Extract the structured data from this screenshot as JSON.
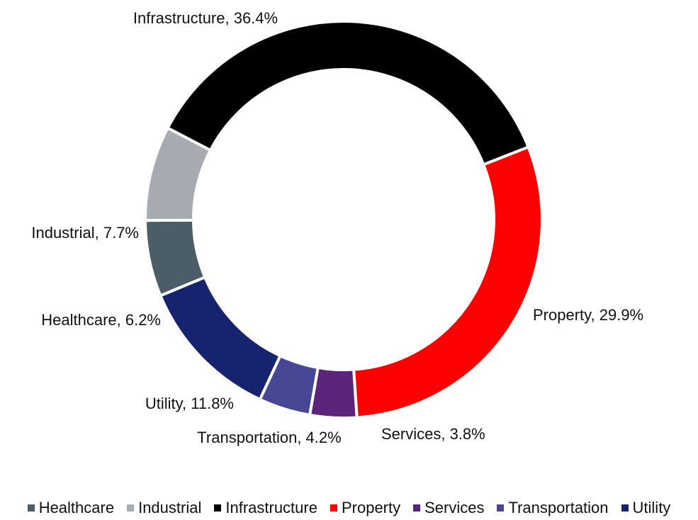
{
  "chart_data": {
    "type": "pie",
    "variant": "donut",
    "title": "",
    "slices": [
      {
        "name": "Infrastructure",
        "value": 36.4,
        "label": "Infrastructure, 36.4%",
        "color": "#000000"
      },
      {
        "name": "Property",
        "value": 29.9,
        "label": "Property, 29.9%",
        "color": "#ff0000"
      },
      {
        "name": "Services",
        "value": 3.8,
        "label": "Services, 3.8%",
        "color": "#5b247a"
      },
      {
        "name": "Transportation",
        "value": 4.2,
        "label": "Transportation, 4.2%",
        "color": "#464896"
      },
      {
        "name": "Utility",
        "value": 11.8,
        "label": "Utility, 11.8%",
        "color": "#162470"
      },
      {
        "name": "Healthcare",
        "value": 6.2,
        "label": "Healthcare, 6.2%",
        "color": "#4b5e68"
      },
      {
        "name": "Industrial",
        "value": 7.7,
        "label": "Industrial, 7.7%",
        "color": "#a5abb0"
      }
    ],
    "legend": {
      "position": "bottom",
      "items": [
        {
          "label": "Healthcare",
          "color": "#4b5e68"
        },
        {
          "label": "Industrial",
          "color": "#a5abb0"
        },
        {
          "label": "Infrastructure",
          "color": "#000000"
        },
        {
          "label": "Property",
          "color": "#ff0000"
        },
        {
          "label": "Services",
          "color": "#5b247a"
        },
        {
          "label": "Transportation",
          "color": "#464896"
        },
        {
          "label": "Utility",
          "color": "#162470"
        }
      ]
    }
  }
}
